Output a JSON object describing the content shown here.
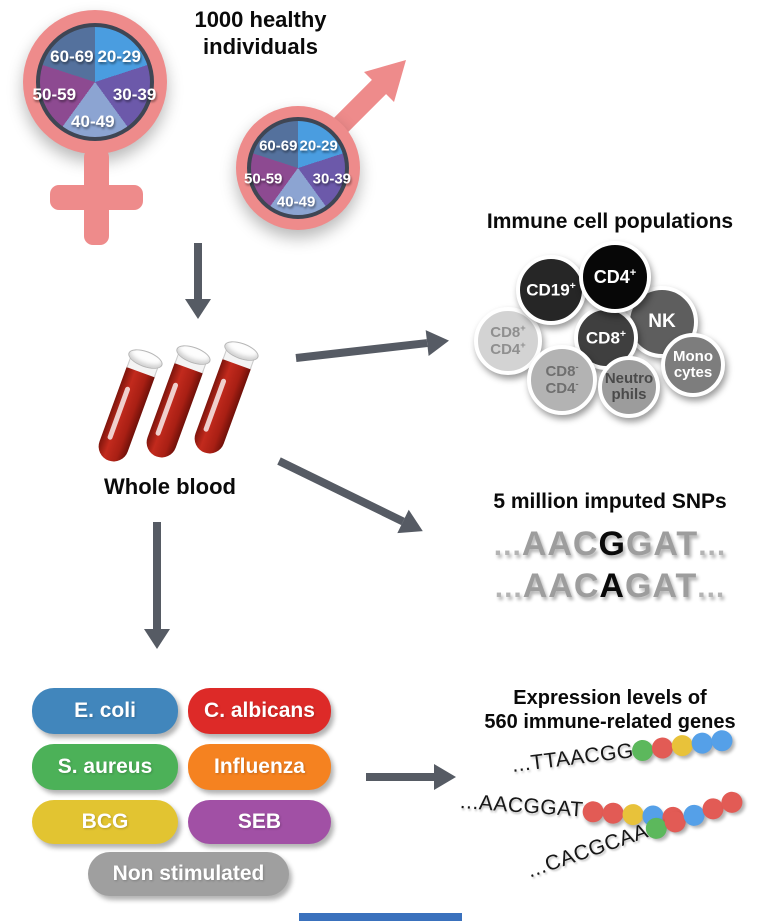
{
  "palette": {
    "symbol_pink": "#ee8b8b",
    "arrow_gray": "#565b64",
    "pie_border": "#3f4654",
    "tube_red": "#b22318"
  },
  "header": {
    "line1": "1000 healthy",
    "line2": "individuals"
  },
  "demographics": {
    "age_groups": [
      {
        "label": "20-29",
        "color": "#4a9de0"
      },
      {
        "label": "30-39",
        "color": "#6c59aa"
      },
      {
        "label": "40-49",
        "color": "#8ca4d2"
      },
      {
        "label": "50-59",
        "color": "#8d4a91"
      },
      {
        "label": "60-69",
        "color": "#54719d"
      }
    ]
  },
  "whole_blood": {
    "label": "Whole blood"
  },
  "immune": {
    "title": "Immune cell populations",
    "cells": [
      {
        "line1": "CD8",
        "sup1": "+",
        "line2": "CD4",
        "sup2": "+",
        "bg": "#d3d3d3",
        "fg": "#8f8f8f"
      },
      {
        "line1": "CD19",
        "sup1": "+",
        "bg": "#262626",
        "fg": "#ffffff"
      },
      {
        "line1": "CD4",
        "sup1": "+",
        "bg": "#070707",
        "fg": "#ffffff"
      },
      {
        "line1": "NK",
        "bg": "#5e5e5e",
        "fg": "#ffffff"
      },
      {
        "line1": "CD8",
        "sup1": "+",
        "bg": "#3f3f3f",
        "fg": "#ffffff"
      },
      {
        "line1": "Mono",
        "line2": "cytes",
        "bg": "#7d7d7d",
        "fg": "#ffffff"
      },
      {
        "line1": "CD8",
        "sup1": "-",
        "line2": "CD4",
        "sup2": "-",
        "bg": "#b3b3b3",
        "fg": "#6f6f6f"
      },
      {
        "line1": "Neutro",
        "line2": "phils",
        "bg": "#9c9c9c",
        "fg": "#4a4a4a"
      }
    ]
  },
  "snps": {
    "title": "5 million imputed SNPs",
    "ellipsis": "...",
    "lines": [
      {
        "pre": "AAC",
        "snp": "G",
        "post": "GAT"
      },
      {
        "pre": "AAC",
        "snp": "A",
        "post": "GAT"
      }
    ]
  },
  "stimuli": {
    "items": [
      {
        "label": "E. coli",
        "color": "#4186bc"
      },
      {
        "label": "C. albicans",
        "color": "#dd2a28"
      },
      {
        "label": "S. aureus",
        "color": "#4cb158"
      },
      {
        "label": "Influenza",
        "color": "#f58220"
      },
      {
        "label": "BCG",
        "color": "#e2c431"
      },
      {
        "label": "SEB",
        "color": "#a150a5"
      },
      {
        "label": "Non stimulated",
        "color": "#9f9f9f"
      }
    ]
  },
  "expression": {
    "title_line1": "Expression levels of",
    "title_line2": "560 immune-related genes",
    "ellipsis": "...",
    "rows": [
      {
        "seq": "TTAACGG",
        "dots": [
          "#5cb85c",
          "#e25b55",
          "#e8c23a",
          "#55a0e8",
          "#55a0e8"
        ]
      },
      {
        "seq": "AACGGAT",
        "dots": [
          "#e25b55",
          "#e25b55",
          "#e8c23a",
          "#55a0e8",
          "#e25b55"
        ]
      },
      {
        "seq": "CACGCAA",
        "dots": [
          "#5cb85c",
          "#e25b55",
          "#55a0e8",
          "#e25b55",
          "#e25b55"
        ]
      }
    ]
  }
}
